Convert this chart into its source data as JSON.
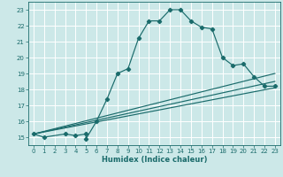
{
  "xlabel": "Humidex (Indice chaleur)",
  "xlim": [
    -0.5,
    23.5
  ],
  "ylim": [
    14.5,
    23.5
  ],
  "xticks": [
    0,
    1,
    2,
    3,
    4,
    5,
    6,
    7,
    8,
    9,
    10,
    11,
    12,
    13,
    14,
    15,
    16,
    17,
    18,
    19,
    20,
    21,
    22,
    23
  ],
  "yticks": [
    15,
    16,
    17,
    18,
    19,
    20,
    21,
    22,
    23
  ],
  "bg_color": "#cce8e8",
  "line_color": "#1a6b6b",
  "grid_color": "#ffffff",
  "line1_x": [
    0,
    1,
    3,
    4,
    5,
    5,
    6,
    7,
    8,
    9,
    10,
    11,
    12,
    13,
    14,
    15,
    16,
    17,
    18,
    19,
    20,
    21,
    22,
    23
  ],
  "line1_y": [
    15.2,
    15.0,
    15.2,
    15.1,
    15.2,
    14.9,
    16.0,
    17.4,
    19.0,
    19.3,
    21.2,
    22.3,
    22.3,
    23.0,
    23.0,
    22.3,
    21.9,
    21.8,
    20.0,
    19.5,
    19.6,
    18.8,
    18.2,
    18.2
  ],
  "line2_x": [
    0,
    23
  ],
  "line2_y": [
    15.2,
    18.1
  ],
  "line3_x": [
    0,
    23
  ],
  "line3_y": [
    15.2,
    18.5
  ],
  "line4_x": [
    0,
    23
  ],
  "line4_y": [
    15.2,
    19.0
  ]
}
